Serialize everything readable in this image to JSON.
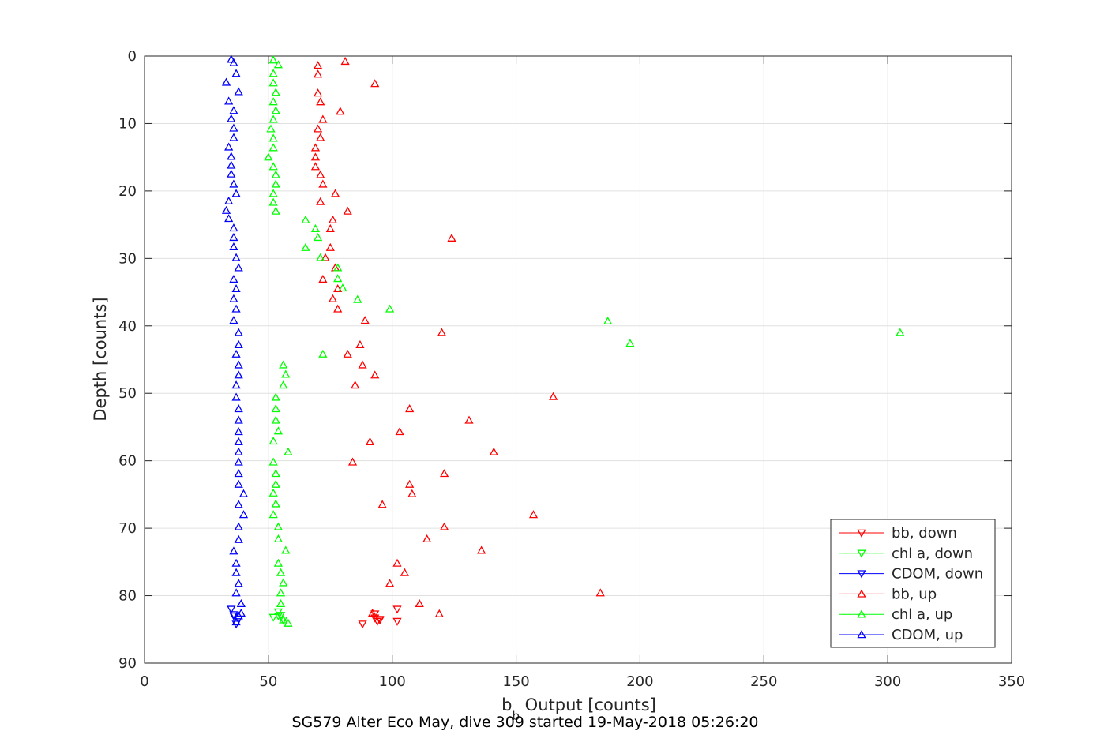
{
  "caption": "SG579 Alter Eco May, dive 309 started 19-May-2018 05:26:20",
  "chart_data": {
    "type": "scatter",
    "title": "",
    "xlabel": {
      "main": "b",
      "sub": "b",
      "rest": " Output [counts]"
    },
    "ylabel": "Depth [counts]",
    "xlim": [
      0,
      350
    ],
    "ylim": [
      0,
      90
    ],
    "y_reversed": true,
    "grid": true,
    "legend_position": "bottom-right",
    "xticks": [
      0,
      50,
      100,
      150,
      200,
      250,
      300,
      350
    ],
    "yticks": [
      0,
      10,
      20,
      30,
      40,
      50,
      60,
      70,
      80,
      90
    ],
    "series": [
      {
        "name": "bb, down",
        "color": "#ff0000",
        "marker": "down",
        "points": [
          [
            88,
            84.2
          ],
          [
            94,
            83.8
          ],
          [
            93,
            83.3
          ],
          [
            95,
            83.6
          ],
          [
            93,
            82.7
          ],
          [
            102,
            82.0
          ],
          [
            102,
            83.8
          ],
          [
            95,
            83.5
          ]
        ]
      },
      {
        "name": "chl a, down",
        "color": "#00ff00",
        "marker": "down",
        "points": [
          [
            52,
            83.2
          ],
          [
            54,
            83.0
          ],
          [
            55,
            82.9
          ],
          [
            56,
            83.6
          ],
          [
            54,
            82.4
          ]
        ]
      },
      {
        "name": "CDOM, down",
        "color": "#0000ff",
        "marker": "down",
        "points": [
          [
            35,
            82.0
          ],
          [
            36,
            83.0
          ],
          [
            37,
            84.2
          ],
          [
            38,
            83.5
          ],
          [
            36,
            82.8
          ]
        ]
      },
      {
        "name": "bb, up",
        "color": "#ff0000",
        "marker": "up",
        "points": [
          [
            81,
            0.8
          ],
          [
            70,
            1.4
          ],
          [
            70,
            2.7
          ],
          [
            93,
            4.1
          ],
          [
            70,
            5.5
          ],
          [
            71,
            6.8
          ],
          [
            79,
            8.2
          ],
          [
            72,
            9.4
          ],
          [
            70,
            10.8
          ],
          [
            71,
            12.1
          ],
          [
            69,
            13.6
          ],
          [
            69,
            15.0
          ],
          [
            69,
            16.4
          ],
          [
            71,
            17.6
          ],
          [
            72,
            19.0
          ],
          [
            77,
            20.4
          ],
          [
            71,
            21.6
          ],
          [
            82,
            23.0
          ],
          [
            76,
            24.3
          ],
          [
            75,
            25.6
          ],
          [
            124,
            27.0
          ],
          [
            75,
            28.4
          ],
          [
            73,
            29.9
          ],
          [
            77,
            31.4
          ],
          [
            72,
            33.1
          ],
          [
            78,
            34.5
          ],
          [
            76,
            36.0
          ],
          [
            78,
            37.5
          ],
          [
            89,
            39.2
          ],
          [
            120,
            41.0
          ],
          [
            87,
            42.8
          ],
          [
            82,
            44.2
          ],
          [
            88,
            45.8
          ],
          [
            93,
            47.3
          ],
          [
            85,
            48.8
          ],
          [
            165,
            50.5
          ],
          [
            107,
            52.3
          ],
          [
            131,
            54.0
          ],
          [
            103,
            55.7
          ],
          [
            91,
            57.2
          ],
          [
            141,
            58.7
          ],
          [
            84,
            60.2
          ],
          [
            121,
            61.9
          ],
          [
            107,
            63.5
          ],
          [
            108,
            64.9
          ],
          [
            96,
            66.5
          ],
          [
            157,
            68.0
          ],
          [
            121,
            69.8
          ],
          [
            114,
            71.6
          ],
          [
            136,
            73.3
          ],
          [
            102,
            75.2
          ],
          [
            105,
            76.6
          ],
          [
            99,
            78.2
          ],
          [
            184,
            79.6
          ],
          [
            111,
            81.2
          ],
          [
            119,
            82.7
          ],
          [
            92,
            82.6
          ]
        ]
      },
      {
        "name": "chl a, up",
        "color": "#00ff00",
        "marker": "up",
        "points": [
          [
            52,
            0.6
          ],
          [
            54,
            1.3
          ],
          [
            52,
            2.6
          ],
          [
            52,
            4.0
          ],
          [
            53,
            5.4
          ],
          [
            52,
            6.8
          ],
          [
            53,
            8.1
          ],
          [
            52,
            9.4
          ],
          [
            51,
            10.8
          ],
          [
            52,
            12.2
          ],
          [
            52,
            13.6
          ],
          [
            50,
            15.0
          ],
          [
            52,
            16.4
          ],
          [
            53,
            17.6
          ],
          [
            53,
            19.0
          ],
          [
            52,
            20.4
          ],
          [
            52,
            21.7
          ],
          [
            53,
            23.0
          ],
          [
            65,
            24.3
          ],
          [
            69,
            25.6
          ],
          [
            70,
            26.9
          ],
          [
            65,
            28.4
          ],
          [
            71,
            29.9
          ],
          [
            78,
            31.4
          ],
          [
            78,
            33.0
          ],
          [
            80,
            34.4
          ],
          [
            86,
            36.1
          ],
          [
            99,
            37.5
          ],
          [
            187,
            39.3
          ],
          [
            305,
            41.0
          ],
          [
            196,
            42.6
          ],
          [
            72,
            44.2
          ],
          [
            56,
            45.8
          ],
          [
            57,
            47.2
          ],
          [
            56,
            48.8
          ],
          [
            53,
            50.6
          ],
          [
            53,
            52.3
          ],
          [
            53,
            54.0
          ],
          [
            54,
            55.6
          ],
          [
            52,
            57.1
          ],
          [
            58,
            58.7
          ],
          [
            52,
            60.2
          ],
          [
            53,
            61.9
          ],
          [
            53,
            63.5
          ],
          [
            52,
            64.8
          ],
          [
            53,
            66.4
          ],
          [
            52,
            68.0
          ],
          [
            54,
            69.8
          ],
          [
            54,
            71.6
          ],
          [
            57,
            73.3
          ],
          [
            54,
            75.2
          ],
          [
            55,
            76.6
          ],
          [
            56,
            78.1
          ],
          [
            55,
            79.6
          ],
          [
            55,
            81.2
          ],
          [
            56,
            83.6
          ],
          [
            58,
            84.1
          ]
        ]
      },
      {
        "name": "CDOM, up",
        "color": "#0000ff",
        "marker": "up",
        "points": [
          [
            35,
            0.5
          ],
          [
            36,
            1.0
          ],
          [
            37,
            2.6
          ],
          [
            33,
            3.9
          ],
          [
            38,
            5.3
          ],
          [
            34,
            6.7
          ],
          [
            36,
            8.1
          ],
          [
            35,
            9.3
          ],
          [
            36,
            10.7
          ],
          [
            36,
            12.1
          ],
          [
            34,
            13.5
          ],
          [
            35,
            14.9
          ],
          [
            35,
            16.2
          ],
          [
            35,
            17.5
          ],
          [
            36,
            19.0
          ],
          [
            37,
            20.4
          ],
          [
            34,
            21.5
          ],
          [
            33,
            22.9
          ],
          [
            34,
            24.1
          ],
          [
            36,
            25.5
          ],
          [
            36,
            26.9
          ],
          [
            36,
            28.3
          ],
          [
            37,
            29.9
          ],
          [
            38,
            31.4
          ],
          [
            36,
            33.1
          ],
          [
            37,
            34.5
          ],
          [
            36,
            36.0
          ],
          [
            37,
            37.5
          ],
          [
            36,
            39.2
          ],
          [
            38,
            41.0
          ],
          [
            38,
            42.8
          ],
          [
            37,
            44.2
          ],
          [
            38,
            45.8
          ],
          [
            38,
            47.3
          ],
          [
            37,
            48.8
          ],
          [
            37,
            50.6
          ],
          [
            38,
            52.3
          ],
          [
            38,
            54.0
          ],
          [
            38,
            55.7
          ],
          [
            38,
            57.2
          ],
          [
            38,
            58.7
          ],
          [
            38,
            60.2
          ],
          [
            38,
            61.9
          ],
          [
            38,
            63.5
          ],
          [
            40,
            64.9
          ],
          [
            38,
            66.5
          ],
          [
            40,
            68.0
          ],
          [
            38,
            69.8
          ],
          [
            38,
            71.7
          ],
          [
            36,
            73.4
          ],
          [
            37,
            75.2
          ],
          [
            37,
            76.6
          ],
          [
            38,
            78.2
          ],
          [
            37,
            79.6
          ],
          [
            39,
            81.2
          ],
          [
            39,
            82.6
          ],
          [
            38,
            83.0
          ],
          [
            37,
            83.9
          ]
        ]
      }
    ]
  }
}
